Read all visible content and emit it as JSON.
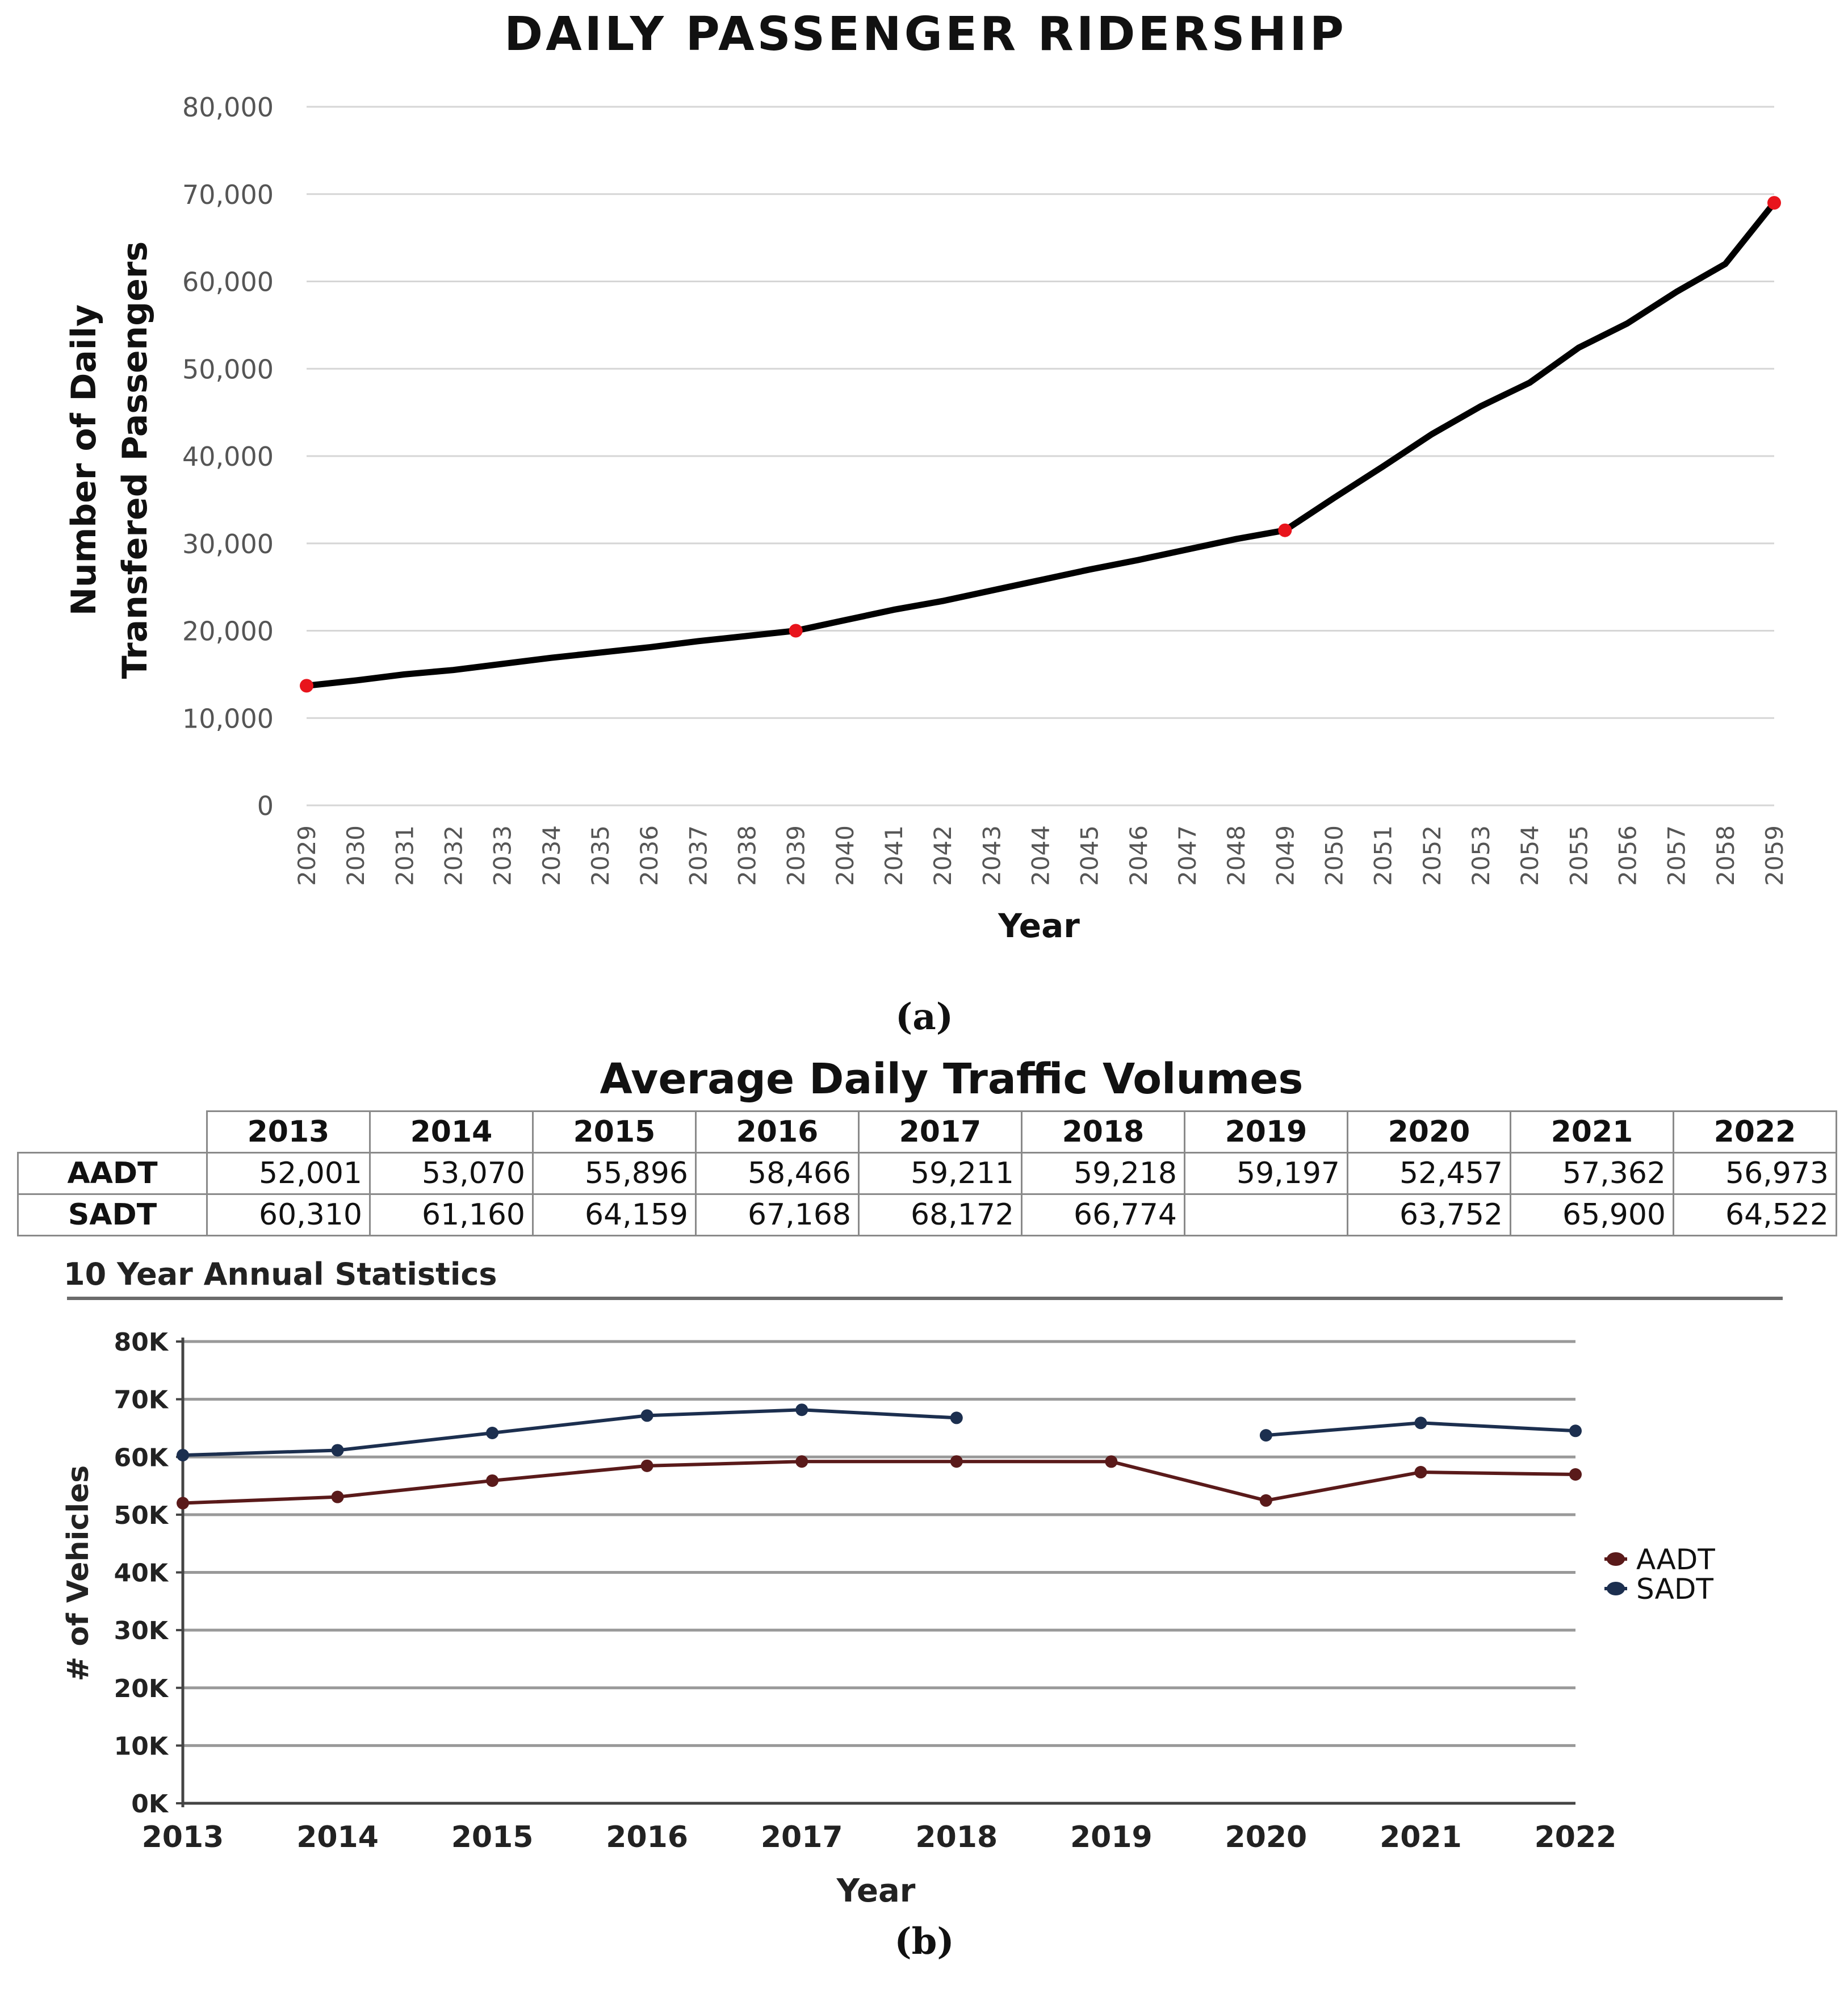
{
  "caption_a": "(a)",
  "caption_b": "(b)",
  "chart_data": [
    {
      "type": "line",
      "title": "DAILY PASSENGER RIDERSHIP",
      "xlabel": "Year",
      "ylabel_lines": [
        "Number of Daily",
        "Transfered Passengers"
      ],
      "ylim": [
        0,
        80000
      ],
      "y_ticks": [
        "0",
        "10,000",
        "20,000",
        "30,000",
        "40,000",
        "50,000",
        "60,000",
        "70,000",
        "80,000"
      ],
      "categories": [
        "2029",
        "2030",
        "2031",
        "2032",
        "2033",
        "2034",
        "2035",
        "2036",
        "2037",
        "2038",
        "2039",
        "2040",
        "2041",
        "2042",
        "2043",
        "2044",
        "2045",
        "2046",
        "2047",
        "2048",
        "2049",
        "2050",
        "2051",
        "2052",
        "2053",
        "2054",
        "2055",
        "2056",
        "2057",
        "2058",
        "2059"
      ],
      "series": [
        {
          "name": "Daily Passenger Ridership",
          "color": "#000000",
          "values": [
            13700,
            14300,
            15000,
            15500,
            16200,
            16900,
            17500,
            18100,
            18800,
            19400,
            20000,
            21200,
            22400,
            23400,
            24600,
            25800,
            27000,
            28100,
            29300,
            30500,
            31500,
            35200,
            38800,
            42500,
            45700,
            48400,
            52400,
            55200,
            58800,
            62000,
            69000
          ]
        }
      ],
      "highlight_points": [
        {
          "year": "2029",
          "value": 13700
        },
        {
          "year": "2039",
          "value": 20000
        },
        {
          "year": "2049",
          "value": 31500
        },
        {
          "year": "2059",
          "value": 69000
        }
      ],
      "highlight_color": "#e8141c",
      "grid": true
    },
    {
      "type": "table",
      "title": "Average Daily Traffic Volumes",
      "columns": [
        "2013",
        "2014",
        "2015",
        "2016",
        "2017",
        "2018",
        "2019",
        "2020",
        "2021",
        "2022"
      ],
      "rows": [
        {
          "label": "AADT",
          "cells": [
            "52,001",
            "53,070",
            "55,896",
            "58,466",
            "59,211",
            "59,218",
            "59,197",
            "52,457",
            "57,362",
            "56,973"
          ]
        },
        {
          "label": "SADT",
          "cells": [
            "60,310",
            "61,160",
            "64,159",
            "67,168",
            "68,172",
            "66,774",
            "",
            "63,752",
            "65,900",
            "64,522"
          ]
        }
      ]
    },
    {
      "type": "line",
      "title": "10 Year Annual Statistics",
      "xlabel": "Year",
      "ylabel": "# of Vehicles",
      "ylim": [
        0,
        80000
      ],
      "y_ticks": [
        "0K",
        "10K",
        "20K",
        "30K",
        "40K",
        "50K",
        "60K",
        "70K",
        "80K"
      ],
      "categories": [
        "2013",
        "2014",
        "2015",
        "2016",
        "2017",
        "2018",
        "2019",
        "2020",
        "2021",
        "2022"
      ],
      "series": [
        {
          "name": "AADT",
          "color": "#5a1a1a",
          "values": [
            52001,
            53070,
            55896,
            58466,
            59211,
            59218,
            59197,
            52457,
            57362,
            56973
          ]
        },
        {
          "name": "SADT",
          "color": "#1c2f4f",
          "values": [
            60310,
            61160,
            64159,
            67168,
            68172,
            66774,
            null,
            63752,
            65900,
            64522
          ]
        }
      ],
      "legend": [
        "AADT",
        "SADT"
      ],
      "legend_position": "right",
      "grid": true
    }
  ]
}
